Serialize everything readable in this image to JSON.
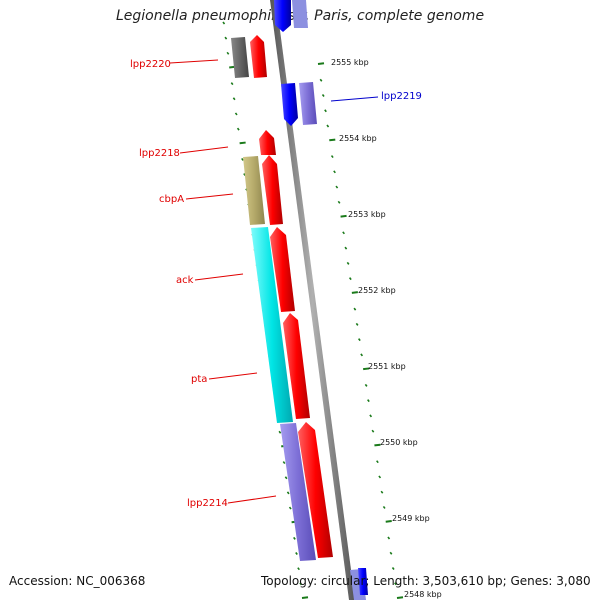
{
  "title": "Legionella pneumophila str. Paris, complete genome",
  "footer": {
    "accession": "Accession: NC_006368",
    "summary": "Topology: circular; Length: 3,503,610 bp; Genes: 3,080"
  },
  "ticks": [
    {
      "label": "2555 kbp",
      "kbp": 2555
    },
    {
      "label": "2554 kbp",
      "kbp": 2554
    },
    {
      "label": "2553 kbp",
      "kbp": 2553
    },
    {
      "label": "2552 kbp",
      "kbp": 2552
    },
    {
      "label": "2551 kbp",
      "kbp": 2551
    },
    {
      "label": "2550 kbp",
      "kbp": 2550
    },
    {
      "label": "2549 kbp",
      "kbp": 2549
    },
    {
      "label": "2548 kbp",
      "kbp": 2548
    }
  ],
  "labels": [
    {
      "text": "lpp2220",
      "color": "#e00000"
    },
    {
      "text": "lpp2219",
      "color": "#0000cc"
    },
    {
      "text": "lpp2218",
      "color": "#e00000"
    },
    {
      "text": "cbpA",
      "color": "#e00000"
    },
    {
      "text": "ack",
      "color": "#e00000"
    },
    {
      "text": "pta",
      "color": "#e00000"
    },
    {
      "text": "lpp2214",
      "color": "#e00000"
    }
  ],
  "colors": {
    "cds_forward": "#ff0000",
    "cds_reverse": "#0000ff",
    "backbone": "#8c8c8c",
    "tick_mark": "#1a7a1a",
    "gene_gray": "#666666",
    "gene_khaki": "#b5aa6a",
    "gene_cyan": "#00e5e5",
    "gene_purple": "#7d6fd6",
    "gene_lightpurple": "#8f86e0"
  }
}
